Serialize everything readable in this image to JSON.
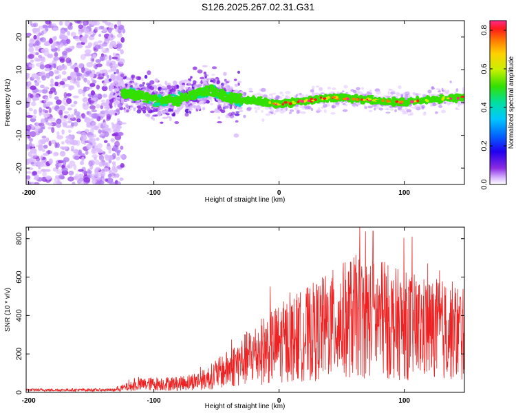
{
  "figure_title": "S126.2025.267.02.31.G31",
  "colors": {
    "snr_line": "#ee2222",
    "cloud": "#8a3cf0",
    "axis": "#000000"
  },
  "chart_data": [
    {
      "type": "heatmap",
      "title": "S126.2025.267.02.31.G31",
      "xlabel": "Height of straight line (km)",
      "ylabel": "Frequency (Hz)",
      "xlim": [
        -202,
        148
      ],
      "ylim": [
        -25,
        25
      ],
      "xticks": [
        -200,
        -100,
        0,
        100
      ],
      "xtick_labels": [
        "-200",
        "-100",
        "0",
        "100"
      ],
      "yticks": [
        20,
        10,
        0,
        -10,
        -20
      ],
      "ytick_labels": [
        "20",
        "10",
        "0",
        "-10",
        "-20"
      ],
      "colorbar": {
        "label": "Normalized spectral amplitude",
        "range": [
          0,
          0.85
        ],
        "ticks": [
          0.0,
          0.2,
          0.4,
          0.6,
          0.8
        ],
        "tick_labels": [
          "0.0",
          "0.2",
          "0.4",
          "0.6",
          "0.8"
        ],
        "colormap": [
          "#ffffff",
          "#d9b8ff",
          "#8a2be2",
          "#2200ee",
          "#0066ff",
          "#00c8ff",
          "#00e0a0",
          "#33e000",
          "#c8f000",
          "#ffd000",
          "#ff7a00",
          "#ff1a1a",
          "#ff2a8c"
        ]
      },
      "ridge": [
        [
          -125,
          3
        ],
        [
          -110,
          2
        ],
        [
          -95,
          0.5
        ],
        [
          -80,
          1
        ],
        [
          -65,
          3
        ],
        [
          -55,
          4
        ],
        [
          -45,
          2
        ],
        [
          -35,
          1
        ],
        [
          -20,
          0.5
        ],
        [
          0,
          -0.5
        ],
        [
          20,
          0.5
        ],
        [
          40,
          1.5
        ],
        [
          60,
          1.2
        ],
        [
          80,
          0.5
        ],
        [
          100,
          0
        ],
        [
          120,
          1
        ],
        [
          148,
          1.5
        ]
      ]
    },
    {
      "type": "line",
      "series": [
        {
          "name": "SNR",
          "color": "#ee2222"
        }
      ],
      "xlabel": "Height of straight line (km)",
      "ylabel": "SNR (10 * v/v)",
      "xlim": [
        -202,
        148
      ],
      "ylim": [
        0,
        860
      ],
      "xticks": [
        -200,
        -100,
        0,
        100
      ],
      "xtick_labels": [
        "-200",
        "-100",
        "0",
        "100"
      ],
      "yticks": [
        0,
        200,
        400,
        600,
        800
      ],
      "ytick_labels": [
        "0",
        "200",
        "400",
        "600",
        "800"
      ],
      "envelope": [
        [
          -202,
          20
        ],
        [
          -130,
          20
        ],
        [
          -110,
          50
        ],
        [
          -95,
          55
        ],
        [
          -80,
          55
        ],
        [
          -60,
          80
        ],
        [
          -40,
          150
        ],
        [
          -20,
          240
        ],
        [
          0,
          310
        ],
        [
          20,
          360
        ],
        [
          40,
          420
        ],
        [
          60,
          480
        ],
        [
          80,
          460
        ],
        [
          100,
          420
        ],
        [
          120,
          400
        ],
        [
          148,
          380
        ]
      ],
      "peak": [
        75,
        840
      ]
    }
  ]
}
